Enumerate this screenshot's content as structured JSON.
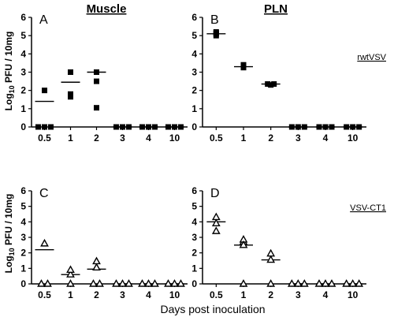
{
  "figure": {
    "title_left": "Muscle",
    "title_right": "PLN",
    "xaxis_title": "Days post inoculation",
    "ylabel_prefix": "Log",
    "ylabel_subscript": "10",
    "ylabel_suffix": " PFU / 10mg",
    "row_labels": [
      "rwtVSV",
      "VSV-CT1"
    ]
  },
  "chart_data": [
    {
      "panel": "A",
      "type": "scatter",
      "marker": "square",
      "categories": [
        "0.5",
        "1",
        "2",
        "3",
        "4",
        "10"
      ],
      "ylim": [
        0,
        6
      ],
      "yticks": [
        0,
        1,
        2,
        3,
        4,
        5,
        6
      ],
      "points": [
        [
          0,
          0
        ],
        [
          0,
          0
        ],
        [
          0,
          0
        ],
        [
          0,
          2.0
        ],
        [
          1,
          1.65
        ],
        [
          1,
          1.8
        ],
        [
          1,
          3.0
        ],
        [
          2,
          1.05
        ],
        [
          2,
          2.5
        ],
        [
          2,
          3.0
        ],
        [
          3,
          0
        ],
        [
          3,
          0
        ],
        [
          3,
          0
        ],
        [
          4,
          0
        ],
        [
          4,
          0
        ],
        [
          4,
          0
        ],
        [
          5,
          0
        ],
        [
          5,
          0
        ],
        [
          5,
          0
        ]
      ],
      "means": [
        1.4,
        2.45,
        3.0,
        0,
        0,
        0
      ]
    },
    {
      "panel": "B",
      "type": "scatter",
      "marker": "square",
      "categories": [
        "0.5",
        "1",
        "2",
        "3",
        "4",
        "10"
      ],
      "ylim": [
        0,
        6
      ],
      "yticks": [
        0,
        1,
        2,
        3,
        4,
        5,
        6
      ],
      "points": [
        [
          0,
          5.0
        ],
        [
          0,
          5.1
        ],
        [
          0,
          5.2
        ],
        [
          0,
          5.15
        ],
        [
          1,
          3.4
        ],
        [
          1,
          3.25
        ],
        [
          1,
          3.3
        ],
        [
          2,
          2.35
        ],
        [
          2,
          2.3
        ],
        [
          2,
          2.35
        ],
        [
          3,
          0
        ],
        [
          3,
          0
        ],
        [
          3,
          0
        ],
        [
          4,
          0
        ],
        [
          4,
          0
        ],
        [
          4,
          0
        ],
        [
          5,
          0
        ],
        [
          5,
          0
        ],
        [
          5,
          0
        ]
      ],
      "means": [
        5.1,
        3.3,
        2.35,
        0,
        0,
        0
      ],
      "series_label": "rwtVSV"
    },
    {
      "panel": "C",
      "type": "scatter",
      "marker": "triangle",
      "categories": [
        "0.5",
        "1",
        "2",
        "3",
        "4",
        "10"
      ],
      "ylim": [
        0,
        6
      ],
      "yticks": [
        0,
        1,
        2,
        3,
        4,
        5,
        6
      ],
      "points": [
        [
          0,
          0
        ],
        [
          0,
          0
        ],
        [
          0,
          2.6
        ],
        [
          1,
          0
        ],
        [
          1,
          0.6
        ],
        [
          1,
          0.9
        ],
        [
          2,
          0
        ],
        [
          2,
          0
        ],
        [
          2,
          1.05
        ],
        [
          2,
          1.45
        ],
        [
          3,
          0
        ],
        [
          3,
          0
        ],
        [
          3,
          0
        ],
        [
          4,
          0
        ],
        [
          4,
          0
        ],
        [
          4,
          0
        ],
        [
          5,
          0
        ],
        [
          5,
          0
        ],
        [
          5,
          0
        ]
      ],
      "means": [
        2.2,
        0.6,
        0.95,
        0,
        0,
        0
      ]
    },
    {
      "panel": "D",
      "type": "scatter",
      "marker": "triangle",
      "categories": [
        "0.5",
        "1",
        "2",
        "3",
        "4",
        "10"
      ],
      "ylim": [
        0,
        6
      ],
      "yticks": [
        0,
        1,
        2,
        3,
        4,
        5,
        6
      ],
      "points": [
        [
          0,
          3.4
        ],
        [
          0,
          3.9
        ],
        [
          0,
          4.3
        ],
        [
          1,
          0
        ],
        [
          1,
          2.7
        ],
        [
          1,
          2.85
        ],
        [
          1,
          2.5
        ],
        [
          2,
          0
        ],
        [
          2,
          1.55
        ],
        [
          2,
          1.95
        ],
        [
          3,
          0
        ],
        [
          3,
          0
        ],
        [
          3,
          0
        ],
        [
          4,
          0
        ],
        [
          4,
          0
        ],
        [
          4,
          0
        ],
        [
          5,
          0
        ],
        [
          5,
          0
        ],
        [
          5,
          0
        ]
      ],
      "means": [
        4.0,
        2.5,
        1.55,
        0,
        0,
        0
      ],
      "series_label": "VSV-CT1"
    }
  ]
}
